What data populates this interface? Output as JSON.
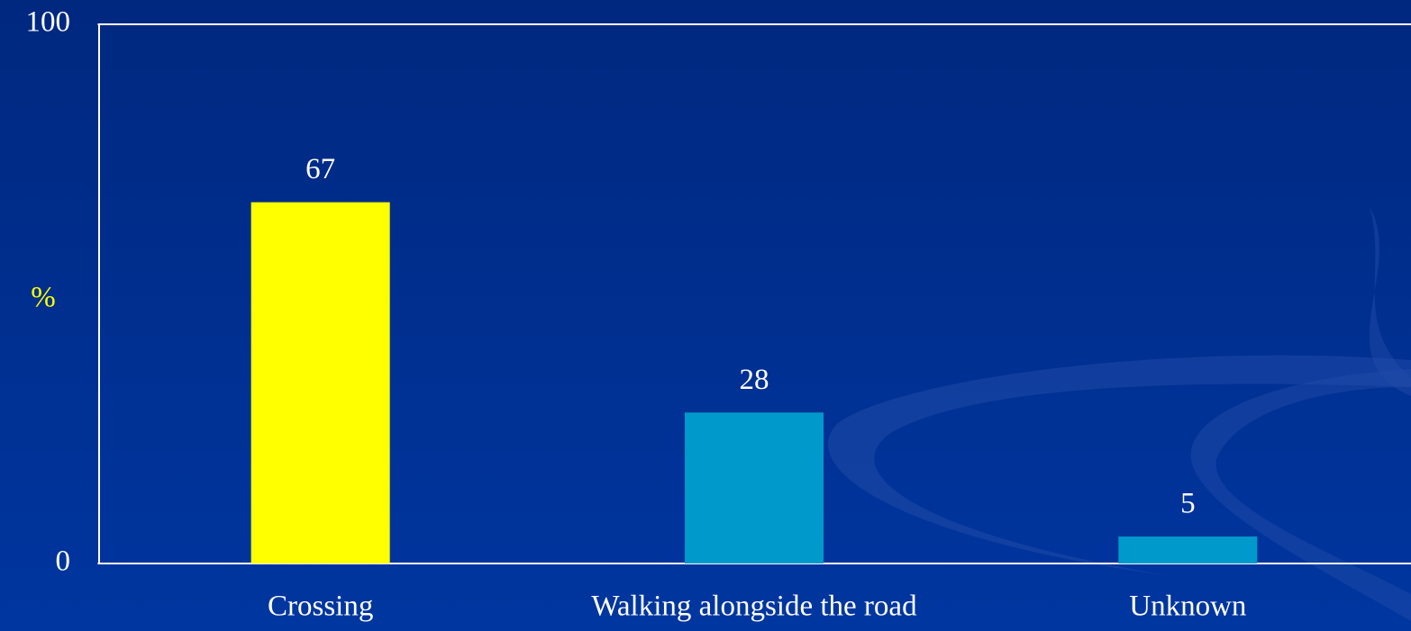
{
  "chart_data": {
    "type": "bar",
    "categories": [
      "Crossing",
      "Walking alongside the road",
      "Unknown"
    ],
    "values": [
      67,
      28,
      5
    ],
    "colors": [
      "#ffff00",
      "#0099cc",
      "#0099cc"
    ],
    "y_label": "%",
    "ylim": [
      0,
      100
    ],
    "yticks": [
      0,
      100
    ],
    "grid": false
  }
}
